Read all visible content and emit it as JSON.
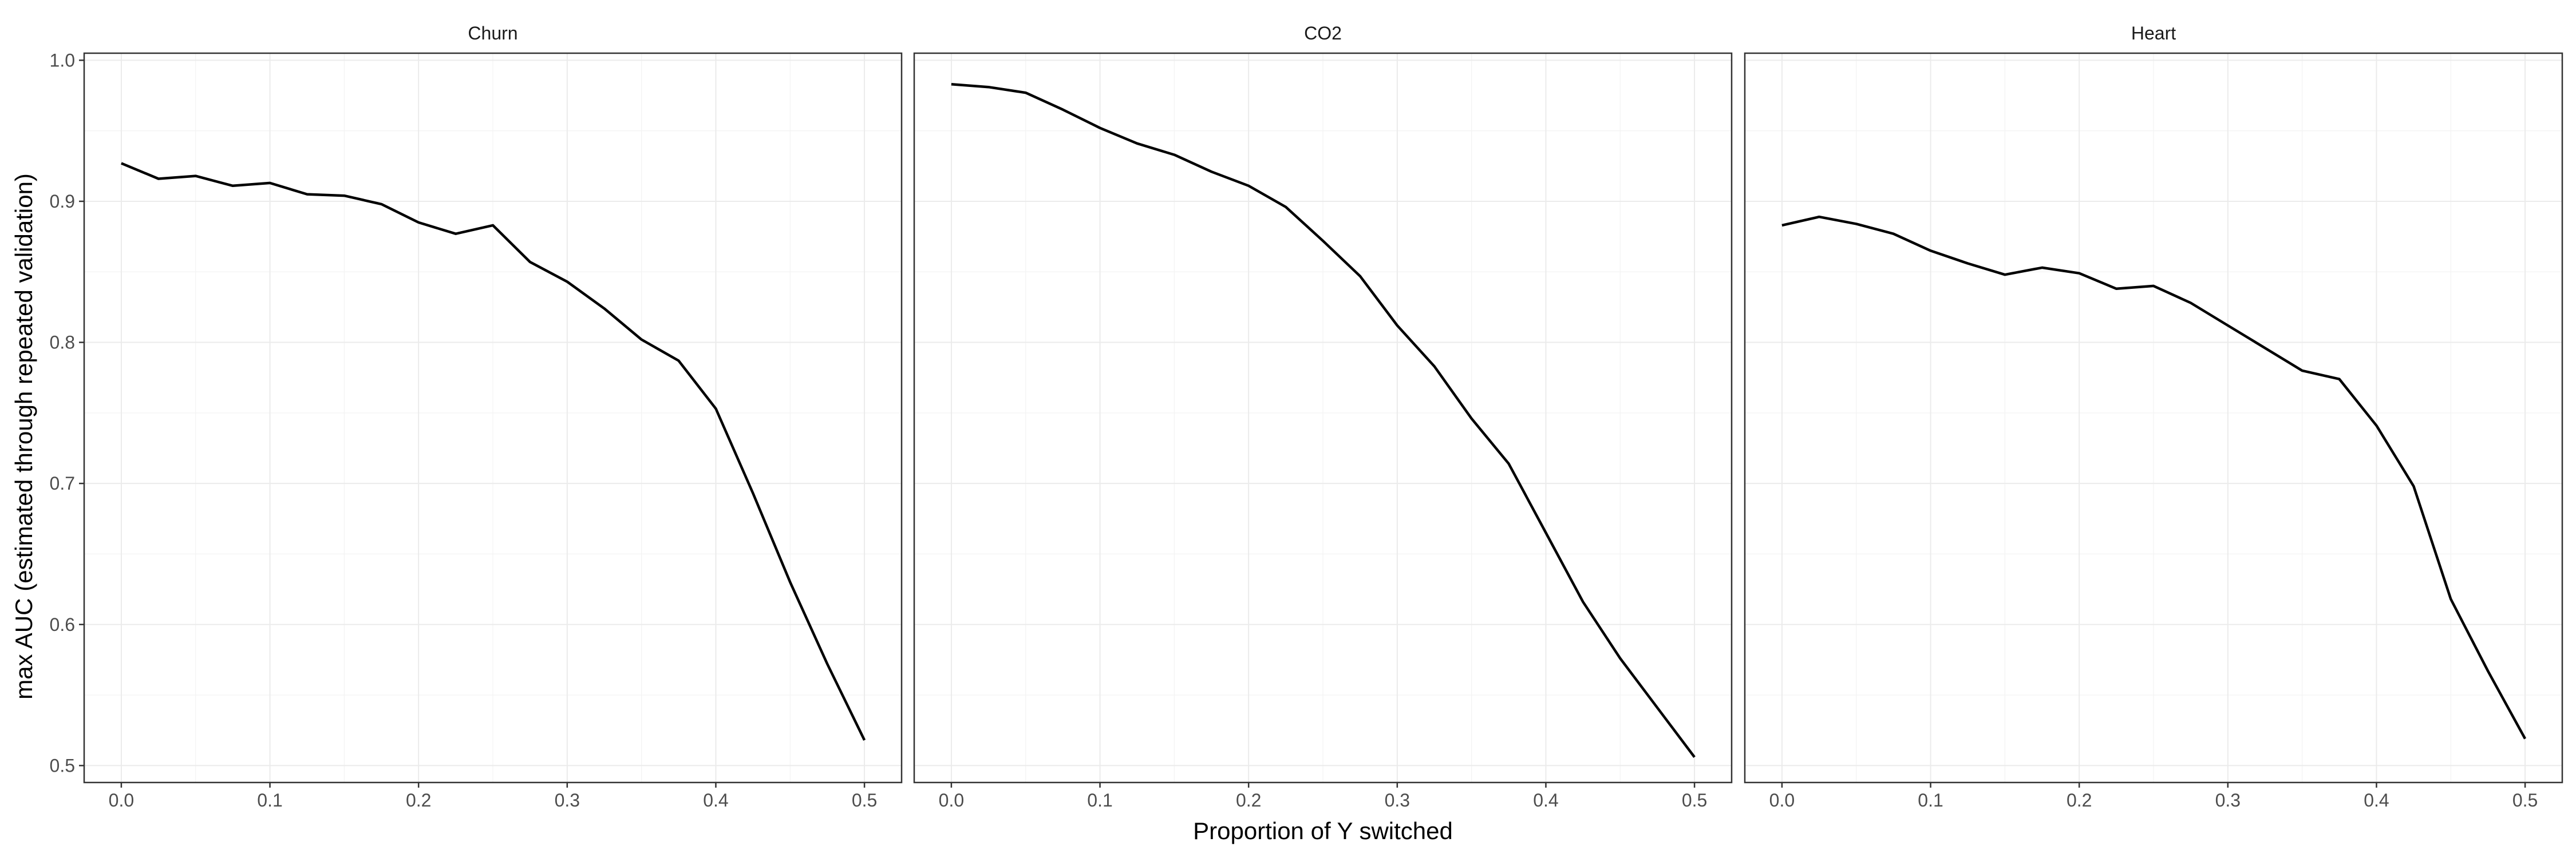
{
  "chart_data": {
    "type": "line",
    "xlabel": "Proportion of Y switched",
    "ylabel": "max AUC (estimated through repeated validation)",
    "xlim": [
      -0.025,
      0.525
    ],
    "ylim": [
      0.488,
      1.005
    ],
    "x_ticks": [
      0.0,
      0.1,
      0.2,
      0.3,
      0.4,
      0.5
    ],
    "x_tick_labels": [
      "0.0",
      "0.1",
      "0.2",
      "0.3",
      "0.4",
      "0.5"
    ],
    "y_ticks": [
      0.5,
      0.6,
      0.7,
      0.8,
      0.9,
      1.0
    ],
    "y_tick_labels": [
      "0.5",
      "0.6",
      "0.7",
      "0.8",
      "0.9",
      "1.0"
    ],
    "grid": true,
    "x": [
      0.0,
      0.025,
      0.05,
      0.075,
      0.1,
      0.125,
      0.15,
      0.175,
      0.2,
      0.225,
      0.25,
      0.275,
      0.3,
      0.325,
      0.35,
      0.375,
      0.4,
      0.425,
      0.45,
      0.475,
      0.5
    ],
    "panels": [
      {
        "title": "Churn",
        "values": [
          0.927,
          0.916,
          0.918,
          0.911,
          0.913,
          0.905,
          0.904,
          0.898,
          0.885,
          0.877,
          0.883,
          0.857,
          0.843,
          0.824,
          0.802,
          0.787,
          0.753,
          0.693,
          0.63,
          0.572,
          0.518
        ]
      },
      {
        "title": "CO2",
        "values": [
          0.983,
          0.981,
          0.977,
          0.965,
          0.952,
          0.941,
          0.933,
          0.921,
          0.911,
          0.896,
          0.872,
          0.847,
          0.812,
          0.783,
          0.746,
          0.714,
          0.665,
          0.616,
          0.576,
          0.541,
          0.506
        ]
      },
      {
        "title": "Heart",
        "values": [
          0.883,
          0.889,
          0.884,
          0.877,
          0.865,
          0.856,
          0.848,
          0.853,
          0.849,
          0.838,
          0.84,
          0.828,
          0.812,
          0.796,
          0.78,
          0.774,
          0.741,
          0.698,
          0.618,
          0.567,
          0.519
        ]
      }
    ]
  }
}
